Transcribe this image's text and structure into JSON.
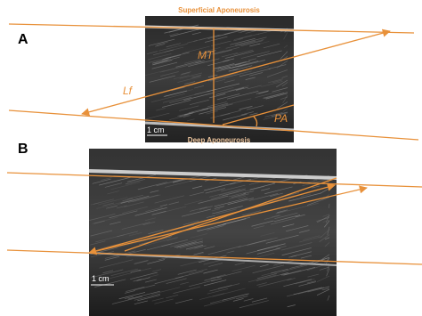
{
  "panel_a": {
    "label": "A",
    "superficial": "Superficial Aponeurosis",
    "mt": "MT",
    "lf": "Lf",
    "pa": "PA",
    "scale": "1 cm",
    "deep": "Deep Aponeurosis"
  },
  "panel_b": {
    "label": "B",
    "scale": "1 cm"
  }
}
